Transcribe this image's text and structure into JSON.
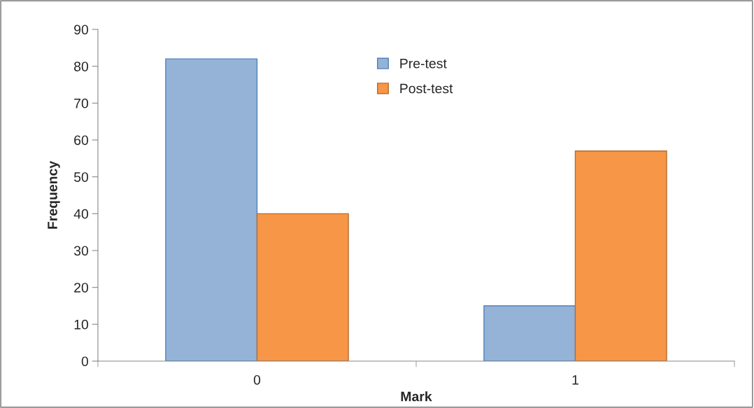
{
  "chart_data": {
    "type": "bar",
    "xlabel": "Mark",
    "ylabel": "Frequency",
    "categories": [
      "0",
      "1"
    ],
    "series": [
      {
        "name": "Pre-test",
        "color": "#95b3d7",
        "values": [
          82,
          15
        ]
      },
      {
        "name": "Post-test",
        "color": "#f79646",
        "values": [
          40,
          57
        ]
      }
    ],
    "ylim": [
      0,
      90
    ],
    "yticks": [
      0,
      10,
      20,
      30,
      40,
      50,
      60,
      70,
      80,
      90
    ],
    "grid": false,
    "legend": "top"
  }
}
